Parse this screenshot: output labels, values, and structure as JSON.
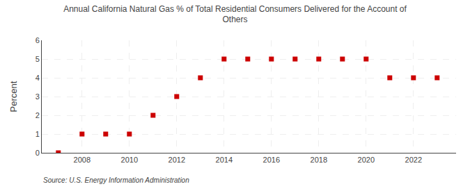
{
  "chart_data": {
    "type": "scatter",
    "title": "Annual California Natural Gas % of Total Residential Consumers Delivered for the Account of\nOthers",
    "ylabel": "Percent",
    "source": "Source: U.S. Energy Information Administration",
    "x": [
      2007,
      2008,
      2009,
      2010,
      2011,
      2012,
      2013,
      2014,
      2015,
      2016,
      2017,
      2018,
      2019,
      2020,
      2021,
      2022,
      2023
    ],
    "values": [
      0.0,
      1.0,
      1.0,
      1.0,
      2.0,
      3.0,
      4.0,
      5.0,
      5.0,
      5.0,
      5.0,
      5.0,
      5.0,
      5.0,
      4.0,
      4.0,
      4.0
    ],
    "color": "#cc0000",
    "marker": "square",
    "xlim": [
      2006.3,
      2023.8
    ],
    "xticks": [
      2008,
      2010,
      2012,
      2014,
      2016,
      2018,
      2020,
      2022
    ],
    "ylim": [
      0,
      6
    ],
    "yticks": [
      0,
      1,
      2,
      3,
      4,
      5,
      6
    ],
    "grid": true
  }
}
